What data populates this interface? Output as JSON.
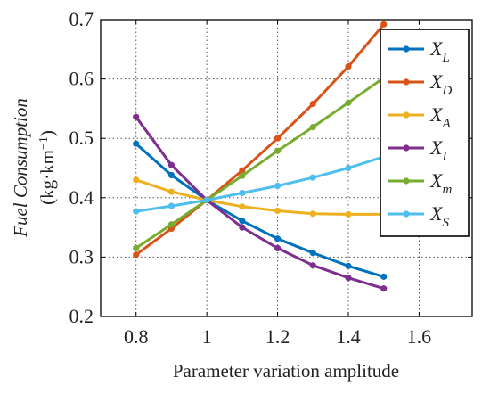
{
  "chart_data": {
    "type": "line",
    "xlabel": "Parameter variation amplitude",
    "ylabel_line1": "Fuel Consumption",
    "ylabel_line2_prefix": "(kg·km",
    "ylabel_line2_exp": "−1",
    "ylabel_line2_suffix": ")",
    "xlim": [
      0.7,
      1.75
    ],
    "ylim": [
      0.2,
      0.7
    ],
    "xticks": [
      0.8,
      1,
      1.2,
      1.4,
      1.6
    ],
    "xtick_labels": [
      "0.8",
      "1",
      "1.2",
      "1.4",
      "1.6"
    ],
    "yticks": [
      0.2,
      0.3,
      0.4,
      0.5,
      0.6,
      0.7
    ],
    "ytick_labels": [
      "0.2",
      "0.3",
      "0.4",
      "0.5",
      "0.6",
      "0.7"
    ],
    "grid": true,
    "legend_position": "right",
    "x": [
      0.8,
      0.9,
      1.0,
      1.1,
      1.2,
      1.3,
      1.4,
      1.5
    ],
    "series": [
      {
        "name": "X_L",
        "base": "X",
        "sub": "L",
        "color": "#0072BD",
        "values": [
          0.491,
          0.438,
          0.396,
          0.361,
          0.331,
          0.307,
          0.285,
          0.267
        ]
      },
      {
        "name": "X_D",
        "base": "X",
        "sub": "D",
        "color": "#D95319",
        "values": [
          0.304,
          0.348,
          0.396,
          0.446,
          0.5,
          0.558,
          0.621,
          0.692
        ]
      },
      {
        "name": "X_A",
        "base": "X",
        "sub": "A",
        "color": "#EDB120",
        "values": [
          0.43,
          0.41,
          0.396,
          0.385,
          0.378,
          0.373,
          0.372,
          0.372
        ]
      },
      {
        "name": "X_I",
        "base": "X",
        "sub": "I",
        "color": "#7E2F8E",
        "values": [
          0.536,
          0.455,
          0.396,
          0.35,
          0.315,
          0.286,
          0.265,
          0.247
        ]
      },
      {
        "name": "X_m",
        "base": "X",
        "sub": "m",
        "color": "#77AC30",
        "values": [
          0.315,
          0.355,
          0.396,
          0.437,
          0.479,
          0.519,
          0.56,
          0.602
        ]
      },
      {
        "name": "X_S",
        "base": "X",
        "sub": "S",
        "color": "#4DBEEE",
        "values": [
          0.377,
          0.386,
          0.396,
          0.408,
          0.42,
          0.434,
          0.45,
          0.469
        ]
      }
    ]
  }
}
